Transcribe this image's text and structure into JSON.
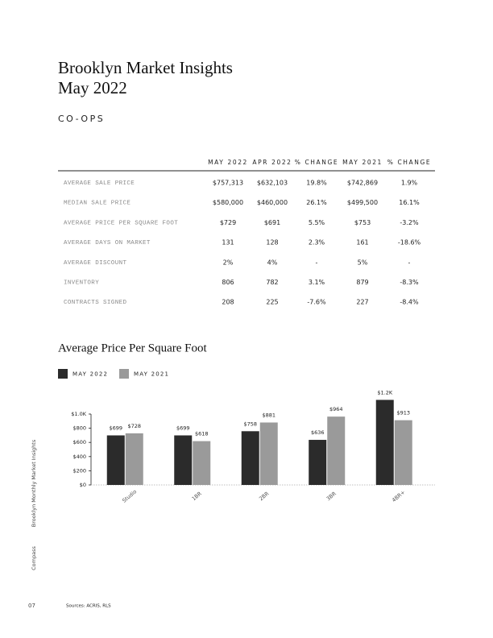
{
  "header": {
    "title": "Brooklyn Market Insights",
    "subtitle": "May 2022",
    "section": "CO-OPS"
  },
  "table": {
    "columns": [
      "MAY 2022",
      "APR 2022",
      "% CHANGE",
      "MAY 2021",
      "% CHANGE"
    ],
    "rows": [
      [
        "AVERAGE SALE PRICE",
        "$757,313",
        "$632,103",
        "19.8%",
        "$742,869",
        "1.9%"
      ],
      [
        "MEDIAN SALE PRICE",
        "$580,000",
        "$460,000",
        "26.1%",
        "$499,500",
        "16.1%"
      ],
      [
        "AVERAGE PRICE PER SQUARE FOOT",
        "$729",
        "$691",
        "5.5%",
        "$753",
        "-3.2%"
      ],
      [
        "AVERAGE DAYS ON MARKET",
        "131",
        "128",
        "2.3%",
        "161",
        "-18.6%"
      ],
      [
        "AVERAGE DISCOUNT",
        "2%",
        "4%",
        "-",
        "5%",
        "-"
      ],
      [
        "INVENTORY",
        "806",
        "782",
        "3.1%",
        "879",
        "-8.3%"
      ],
      [
        "CONTRACTS SIGNED",
        "208",
        "225",
        "-7.6%",
        "227",
        "-8.4%"
      ]
    ]
  },
  "chart_data": {
    "type": "bar",
    "title": "Average Price Per Square Foot",
    "categories": [
      "Studio",
      "1BR",
      "2BR",
      "3BR",
      "4BR+"
    ],
    "series": [
      {
        "name": "MAY 2022",
        "color": "#2b2b2b",
        "values": [
          699,
          699,
          758,
          636,
          1200
        ],
        "value_labels": [
          "$699",
          "$699",
          "$758",
          "$636",
          "$1.2K"
        ]
      },
      {
        "name": "MAY 2021",
        "color": "#9a9a9a",
        "values": [
          728,
          618,
          881,
          964,
          913
        ],
        "value_labels": [
          "$728",
          "$618",
          "$881",
          "$964",
          "$913"
        ]
      }
    ],
    "ylim": [
      0,
      1200
    ],
    "yticks": [
      {
        "value": 0,
        "label": "$0"
      },
      {
        "value": 200,
        "label": "$200"
      },
      {
        "value": 400,
        "label": "$400"
      },
      {
        "value": 600,
        "label": "$600"
      },
      {
        "value": 800,
        "label": "$800"
      },
      {
        "value": 1000,
        "label": "$1.0K"
      }
    ],
    "legend": "top-left"
  },
  "footer": {
    "side_title": "Brooklyn Monthly Market Insights",
    "brand": "Compass",
    "page": "07",
    "sources": "Sources: ACRIS, RLS"
  }
}
